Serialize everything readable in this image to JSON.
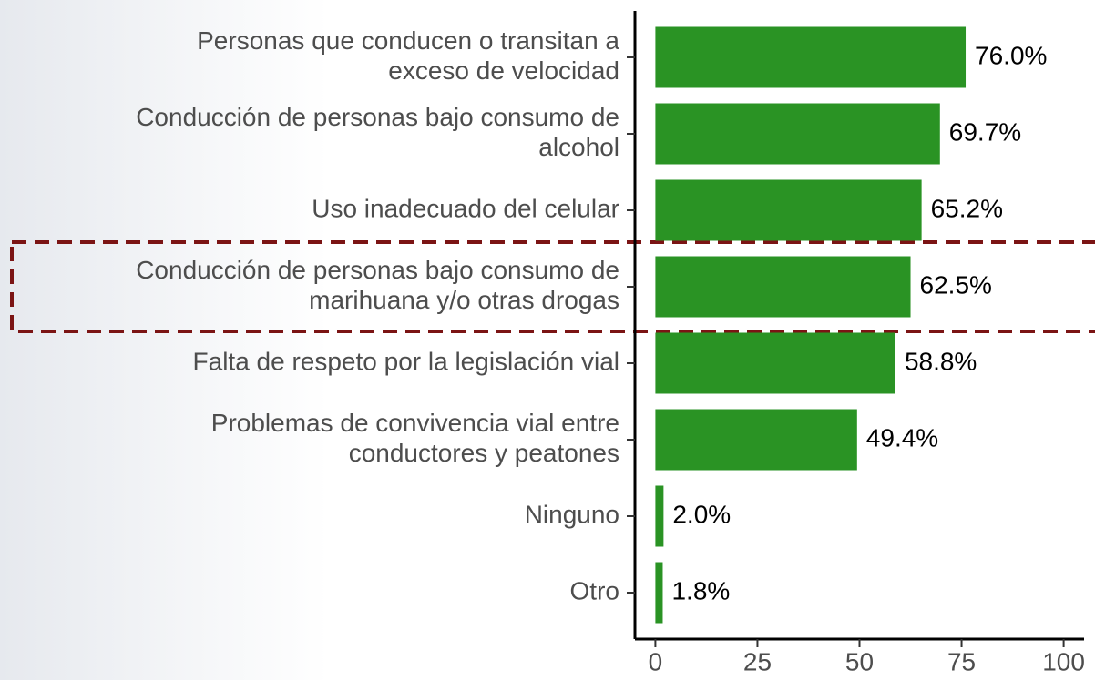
{
  "chart_data": {
    "type": "bar",
    "orientation": "horizontal",
    "categories": [
      [
        "Personas que conducen o transitan a",
        "exceso de velocidad"
      ],
      [
        "Conducción de personas bajo consumo de",
        "alcohol"
      ],
      [
        "Uso inadecuado del celular"
      ],
      [
        "Conducción de personas bajo consumo de",
        "marihuana y/o otras drogas"
      ],
      [
        "Falta de respeto por la legislación vial"
      ],
      [
        "Problemas de convivencia vial entre",
        "conductores y peatones"
      ],
      [
        "Ninguno"
      ],
      [
        "Otro"
      ]
    ],
    "values": [
      76.0,
      69.7,
      65.2,
      62.5,
      58.8,
      49.4,
      2.0,
      1.8
    ],
    "value_labels": [
      "76.0%",
      "69.7%",
      "65.2%",
      "62.5%",
      "58.8%",
      "49.4%",
      "2.0%",
      "1.8%"
    ],
    "color": "#2a9324",
    "xlim": [
      -5,
      105
    ],
    "xticks": [
      0,
      25,
      50,
      75,
      100
    ]
  }
}
